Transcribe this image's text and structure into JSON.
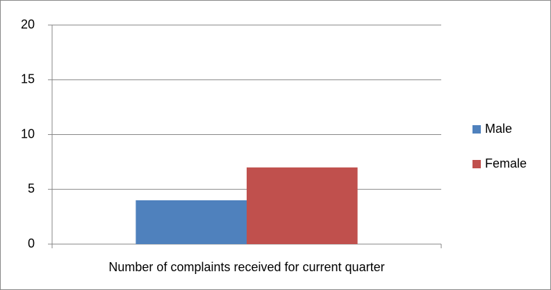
{
  "chart_data": {
    "type": "bar",
    "categories": [
      "Number of complaints received for current quarter"
    ],
    "series": [
      {
        "name": "Male",
        "color": "#4f81bd",
        "values": [
          4
        ]
      },
      {
        "name": "Female",
        "color": "#c0504d",
        "values": [
          7
        ]
      }
    ],
    "ylim": [
      0,
      20
    ],
    "yticks": [
      0,
      5,
      10,
      15,
      20
    ],
    "grid": true,
    "legend": "right"
  }
}
